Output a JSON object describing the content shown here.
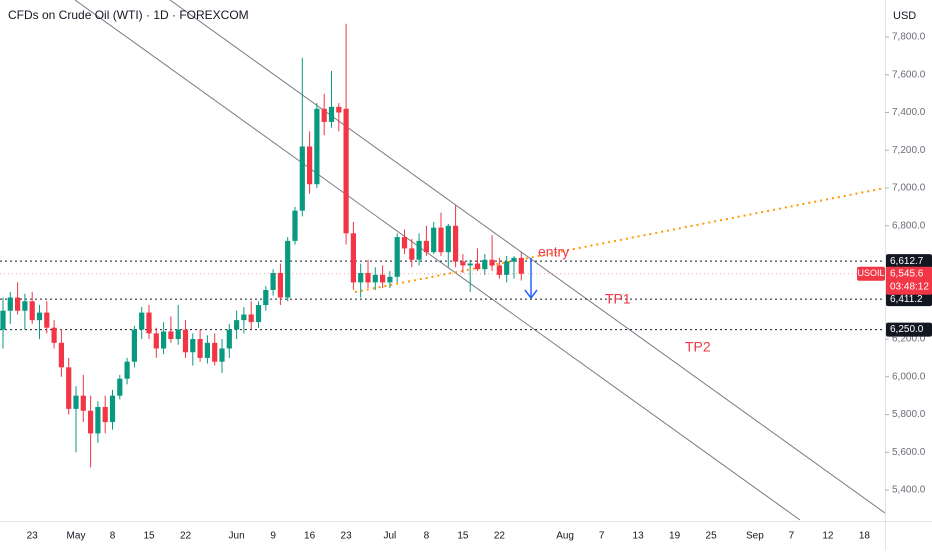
{
  "chart_data": {
    "type": "candlestick",
    "title": "CFDs on Crude Oil (WTI) · 1D · FOREXCOM",
    "currency": "USD",
    "categories": [
      null,
      null,
      null,
      null,
      "23",
      null,
      null,
      null,
      null,
      null,
      "May",
      null,
      null,
      null,
      null,
      "8",
      null,
      null,
      null,
      null,
      "15",
      null,
      null,
      null,
      null,
      "22",
      null,
      null,
      null,
      null,
      null,
      null,
      "Jun",
      null,
      null,
      null,
      null,
      "9",
      null,
      null,
      null,
      null,
      "16",
      null,
      null,
      null,
      null,
      "23",
      null,
      null,
      null,
      null,
      null,
      "Jul",
      null,
      null,
      null,
      null,
      "8",
      null,
      null,
      null,
      null,
      "15",
      null,
      null,
      null,
      null,
      "22",
      null,
      null,
      null,
      null,
      null,
      null,
      null,
      null,
      "Aug",
      null,
      null,
      null,
      null,
      "7",
      null,
      null,
      null,
      null,
      "13",
      null,
      null,
      null,
      null,
      "19",
      null,
      null,
      null,
      null,
      "25",
      null,
      null,
      null,
      null,
      null,
      "Sep",
      null,
      null,
      null,
      null,
      "7",
      null,
      null,
      null,
      null,
      "12",
      null,
      null,
      null,
      null,
      "18",
      null
    ],
    "open": [
      6250,
      6350,
      6420,
      6350,
      6400,
      6300,
      6340,
      6260,
      6180,
      6050,
      5830,
      5900,
      5820,
      5700,
      5840,
      5760,
      5900,
      5990,
      6080,
      6250,
      6340,
      6230,
      6150,
      6240,
      6200,
      6250,
      6130,
      6200,
      6100,
      6180,
      6080,
      6150,
      6250,
      6300,
      6330,
      6290,
      6380,
      6460,
      6550,
      6420,
      6720,
      6880,
      7220,
      7020,
      7420,
      7350,
      7430,
      7420,
      6760,
      6500,
      6550,
      6500,
      6540,
      6500,
      6530,
      6740,
      6680,
      6620,
      6720,
      6660,
      6790,
      6660,
      6800,
      6610,
      6590,
      6600,
      6570,
      6620,
      6590,
      6540,
      6610,
      6630,
      null,
      null,
      null,
      null,
      null,
      null,
      null,
      null,
      null,
      null,
      null,
      null,
      null,
      null,
      null,
      null,
      null,
      null,
      null,
      null,
      null,
      null,
      null,
      null,
      null,
      null,
      null,
      null,
      null,
      null,
      null,
      null,
      null,
      null,
      null,
      null,
      null,
      null,
      null,
      null,
      null,
      null,
      null,
      null,
      null,
      null,
      null,
      null
    ],
    "high": [
      6420,
      6450,
      6500,
      6440,
      6450,
      6380,
      6400,
      6300,
      6250,
      6100,
      5950,
      6010,
      5900,
      5870,
      5900,
      5930,
      6010,
      6100,
      6270,
      6370,
      6380,
      6260,
      6290,
      6320,
      6380,
      6300,
      6230,
      6250,
      6220,
      6230,
      6200,
      6280,
      6350,
      6370,
      6400,
      6400,
      6480,
      6570,
      6600,
      6740,
      6900,
      7690,
      7300,
      7450,
      7500,
      7620,
      7450,
      7870,
      6820,
      6600,
      6620,
      6580,
      6590,
      6560,
      6760,
      6780,
      6730,
      6760,
      6800,
      6820,
      6870,
      6810,
      6910,
      6650,
      6620,
      6680,
      6650,
      6750,
      6630,
      6640,
      6640,
      6660,
      null,
      null,
      null,
      null,
      null,
      null,
      null,
      null,
      null,
      null,
      null,
      null,
      null,
      null,
      null,
      null,
      null,
      null,
      null,
      null,
      null,
      null,
      null,
      null,
      null,
      null,
      null,
      null,
      null,
      null,
      null,
      null,
      null,
      null,
      null,
      null,
      null,
      null,
      null,
      null,
      null,
      null,
      null,
      null,
      null,
      null,
      null,
      null
    ],
    "low": [
      6150,
      6280,
      6330,
      6250,
      6280,
      6200,
      6230,
      6150,
      6000,
      5800,
      5600,
      5760,
      5520,
      5650,
      5700,
      5720,
      5880,
      5960,
      6050,
      6200,
      6200,
      6100,
      6120,
      6180,
      6170,
      6100,
      6060,
      6080,
      6070,
      6060,
      6020,
      6100,
      6200,
      6230,
      6250,
      6260,
      6350,
      6430,
      6380,
      6400,
      6700,
      6850,
      6970,
      7000,
      7280,
      7320,
      7300,
      6700,
      6460,
      6420,
      6470,
      6460,
      6470,
      6470,
      6500,
      6650,
      6580,
      6590,
      6640,
      6650,
      6640,
      6580,
      6580,
      6550,
      6450,
      6560,
      6540,
      6560,
      6520,
      6500,
      6520,
      6510,
      null,
      null,
      null,
      null,
      null,
      null,
      null,
      null,
      null,
      null,
      null,
      null,
      null,
      null,
      null,
      null,
      null,
      null,
      null,
      null,
      null,
      null,
      null,
      null,
      null,
      null,
      null,
      null,
      null,
      null,
      null,
      null,
      null,
      null,
      null,
      null,
      null,
      null,
      null,
      null,
      null,
      null,
      null,
      null,
      null,
      null,
      null,
      null
    ],
    "close": [
      6350,
      6420,
      6350,
      6400,
      6300,
      6340,
      6260,
      6180,
      6050,
      5830,
      5900,
      5820,
      5700,
      5840,
      5760,
      5900,
      5990,
      6080,
      6250,
      6340,
      6230,
      6150,
      6240,
      6200,
      6250,
      6130,
      6200,
      6100,
      6180,
      6080,
      6150,
      6250,
      6300,
      6330,
      6290,
      6380,
      6460,
      6550,
      6420,
      6720,
      6880,
      7220,
      7020,
      7420,
      7350,
      7430,
      7400,
      6760,
      6500,
      6550,
      6500,
      6540,
      6500,
      6530,
      6740,
      6680,
      6620,
      6720,
      6660,
      6790,
      6660,
      6800,
      6610,
      6590,
      6600,
      6570,
      6620,
      6590,
      6540,
      6610,
      6630,
      6545.6,
      null,
      null,
      null,
      null,
      null,
      null,
      null,
      null,
      null,
      null,
      null,
      null,
      null,
      null,
      null,
      null,
      null,
      null,
      null,
      null,
      null,
      null,
      null,
      null,
      null,
      null,
      null,
      null,
      null,
      null,
      null,
      null,
      null,
      null,
      null,
      null,
      null,
      null,
      null,
      null,
      null,
      null,
      null,
      null,
      null,
      null,
      null,
      null
    ],
    "up_color": "#089981",
    "down_color": "#f23645",
    "ylim": [
      5236,
      7996
    ],
    "yticks": [
      {
        "value": 5400,
        "label": "5,400.0"
      },
      {
        "value": 5600,
        "label": "5,600.0"
      },
      {
        "value": 5800,
        "label": "5,800.0"
      },
      {
        "value": 6000,
        "label": "6,000.0"
      },
      {
        "value": 6200,
        "label": "6,200.0"
      },
      {
        "value": 6800,
        "label": "6,800.0"
      },
      {
        "value": 7000,
        "label": "7,000.0"
      },
      {
        "value": 7200,
        "label": "7,200.0"
      },
      {
        "value": 7400,
        "label": "7,400.0"
      },
      {
        "value": 7600,
        "label": "7,600.0"
      },
      {
        "value": 7800,
        "label": "7,800.0"
      }
    ],
    "grid": false,
    "levels": [
      {
        "value": 6612.7,
        "label": "6,612.7"
      },
      {
        "value": 6411.2,
        "label": "6,411.2"
      },
      {
        "value": 6250,
        "label": "6,250.0"
      }
    ],
    "last_price": {
      "symbol": "USOIL",
      "value": 6545.6,
      "label": "6,545.6",
      "countdown": "03:48:12"
    },
    "annotations": [
      "entry",
      "TP1",
      "TP2"
    ]
  }
}
